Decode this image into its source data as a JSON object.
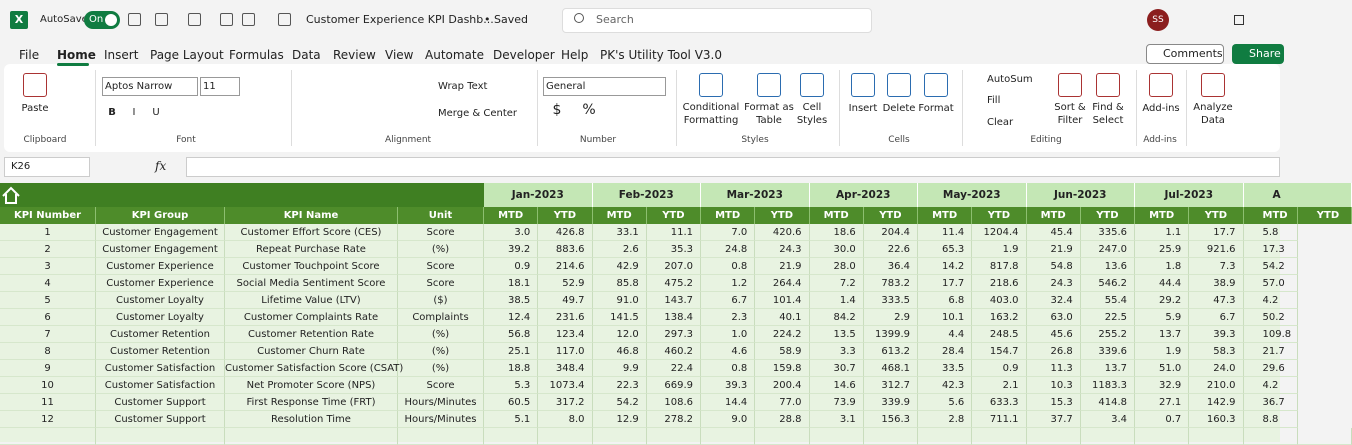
{
  "titlebar": {
    "app_icon": "X",
    "autosave": "AutoSave",
    "toggle": "On",
    "filename": "Customer Experience KPI Dashb...",
    "status": "• Saved",
    "search": "Search",
    "avatar": "SS"
  },
  "menu": {
    "tabs": [
      "File",
      "Home",
      "Insert",
      "Page Layout",
      "Formulas",
      "Data",
      "Review",
      "View",
      "Automate",
      "Developer",
      "Help",
      "PK's Utility Tool V3.0"
    ],
    "active_tab": 1,
    "comments": "Comments",
    "share": "Share"
  },
  "ribbon": {
    "font": "Aptos Narrow",
    "size": "11",
    "number_format": "General",
    "buttons": [
      "Paste",
      "B",
      "I",
      "U",
      "Wrap Text",
      "Merge & Center",
      "$",
      "%",
      "Conditional Formatting",
      "Format as Table",
      "Cell Styles",
      "Insert",
      "Delete",
      "Format",
      "AutoSum",
      "Fill",
      "Clear",
      "Sort & Filter",
      "Find & Select",
      "Add-ins",
      "Analyze Data"
    ],
    "groups": [
      "Clipboard",
      "Font",
      "Alignment",
      "Number",
      "Styles",
      "Cells",
      "Editing",
      "Add-ins"
    ]
  },
  "formula_bar": {
    "name_box": "K26",
    "fx": "fx"
  },
  "sheet": {
    "months": [
      "Jan-2023",
      "Feb-2023",
      "Mar-2023",
      "Apr-2023",
      "May-2023",
      "Jun-2023",
      "Jul-2023",
      "A"
    ],
    "columns": [
      "KPI Number",
      "KPI Group",
      "KPI Name",
      "Unit"
    ],
    "subcolumns": [
      "MTD",
      "YTD"
    ],
    "rows": [
      [
        "1",
        "Customer Engagement",
        "Customer Effort Score (CES)",
        "Score",
        "3.0",
        "426.8",
        "33.1",
        "11.1",
        "7.0",
        "420.6",
        "18.6",
        "204.4",
        "11.4",
        "1204.4",
        "45.4",
        "335.6",
        "1.1",
        "17.7",
        "5.8"
      ],
      [
        "2",
        "Customer Engagement",
        "Repeat Purchase Rate",
        "(%)",
        "39.2",
        "883.6",
        "2.6",
        "35.3",
        "24.8",
        "24.3",
        "30.0",
        "22.6",
        "65.3",
        "1.9",
        "21.9",
        "247.0",
        "25.9",
        "921.6",
        "17.3"
      ],
      [
        "3",
        "Customer Experience",
        "Customer Touchpoint Score",
        "Score",
        "0.9",
        "214.6",
        "42.9",
        "207.0",
        "0.8",
        "21.9",
        "28.0",
        "36.4",
        "14.2",
        "817.8",
        "54.8",
        "13.6",
        "1.8",
        "7.3",
        "54.2"
      ],
      [
        "4",
        "Customer Experience",
        "Social Media Sentiment Score",
        "Score",
        "18.1",
        "52.9",
        "85.8",
        "475.2",
        "1.2",
        "264.4",
        "7.2",
        "783.2",
        "17.7",
        "218.6",
        "24.3",
        "546.2",
        "44.4",
        "38.9",
        "57.0"
      ],
      [
        "5",
        "Customer Loyalty",
        "Lifetime Value (LTV)",
        "($)",
        "38.5",
        "49.7",
        "91.0",
        "143.7",
        "6.7",
        "101.4",
        "1.4",
        "333.5",
        "6.8",
        "403.0",
        "32.4",
        "55.4",
        "29.2",
        "47.3",
        "4.2"
      ],
      [
        "6",
        "Customer Loyalty",
        "Customer Complaints Rate",
        "Complaints",
        "12.4",
        "231.6",
        "141.5",
        "138.4",
        "2.3",
        "40.1",
        "84.2",
        "2.9",
        "10.1",
        "163.2",
        "63.0",
        "22.5",
        "5.9",
        "6.7",
        "50.2"
      ],
      [
        "7",
        "Customer Retention",
        "Customer Retention Rate",
        "(%)",
        "56.8",
        "123.4",
        "12.0",
        "297.3",
        "1.0",
        "224.2",
        "13.5",
        "1399.9",
        "4.4",
        "248.5",
        "45.6",
        "255.2",
        "13.7",
        "39.3",
        "109.8"
      ],
      [
        "8",
        "Customer Retention",
        "Customer Churn Rate",
        "(%)",
        "25.1",
        "117.0",
        "46.8",
        "460.2",
        "4.6",
        "58.9",
        "3.3",
        "613.2",
        "28.4",
        "154.7",
        "26.8",
        "339.6",
        "1.9",
        "58.3",
        "21.7"
      ],
      [
        "9",
        "Customer Satisfaction",
        "Customer Satisfaction Score (CSAT)",
        "(%)",
        "18.8",
        "348.4",
        "9.9",
        "22.4",
        "0.8",
        "159.8",
        "30.7",
        "468.1",
        "33.5",
        "0.9",
        "11.3",
        "13.7",
        "51.0",
        "24.0",
        "29.6"
      ],
      [
        "10",
        "Customer Satisfaction",
        "Net Promoter Score (NPS)",
        "Score",
        "5.3",
        "1073.4",
        "22.3",
        "669.9",
        "39.3",
        "200.4",
        "14.6",
        "312.7",
        "42.3",
        "2.1",
        "10.3",
        "1183.3",
        "32.9",
        "210.0",
        "4.2"
      ],
      [
        "11",
        "Customer Support",
        "First Response Time (FRT)",
        "Hours/Minutes",
        "60.5",
        "317.2",
        "54.2",
        "108.6",
        "14.4",
        "77.0",
        "73.9",
        "339.9",
        "5.6",
        "633.3",
        "15.3",
        "414.8",
        "27.1",
        "142.9",
        "36.7"
      ],
      [
        "12",
        "Customer Support",
        "Resolution Time",
        "Hours/Minutes",
        "5.1",
        "8.0",
        "12.9",
        "278.2",
        "9.0",
        "28.8",
        "3.1",
        "156.3",
        "2.8",
        "711.1",
        "37.7",
        "3.4",
        "0.7",
        "160.3",
        "8.8"
      ]
    ]
  }
}
